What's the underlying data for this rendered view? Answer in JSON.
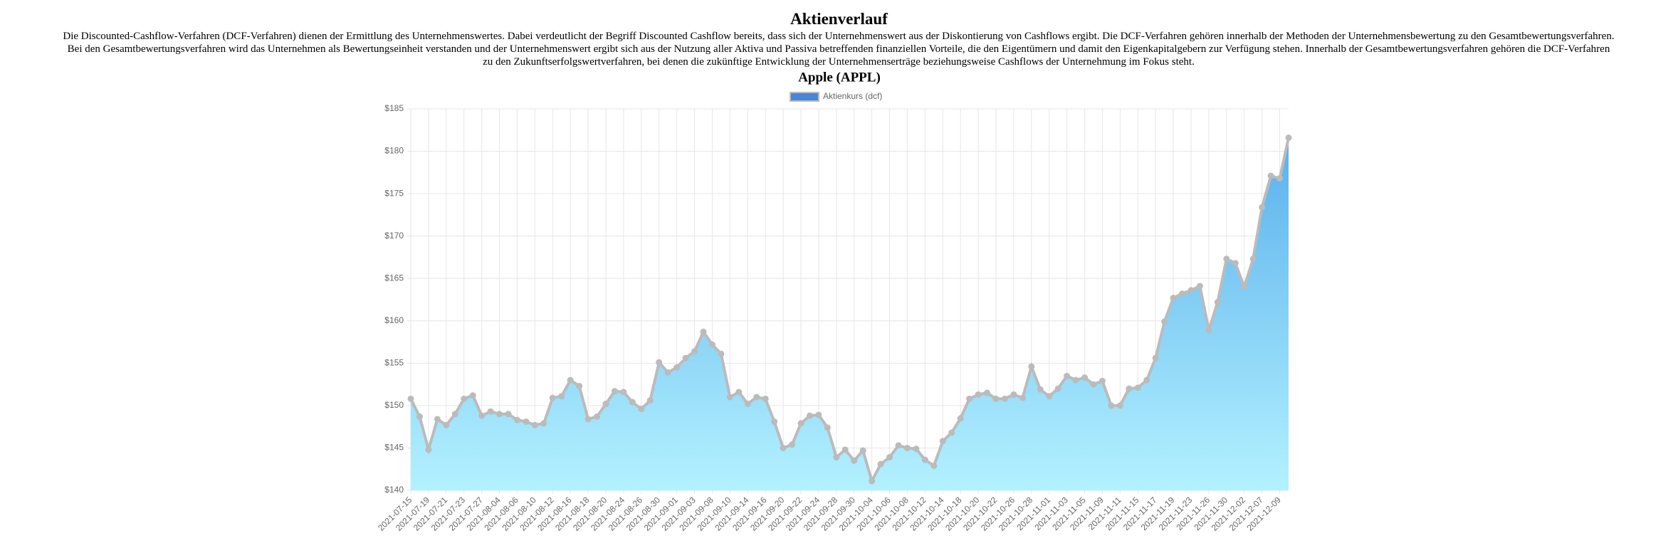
{
  "header": {
    "title": "Aktienverlauf",
    "text": "Die Discounted-Cashflow-Verfahren (DCF-Verfahren) dienen der Ermittlung des Unternehmenswertes. Dabei verdeutlicht der Begriff Discounted Cashflow bereits, dass sich der Unternehmenswert aus der Diskontierung von Cashflows ergibt. Die DCF-Verfahren gehören innerhalb der Methoden der Unternehmensbewertung zu den Gesamtbewertungsverfahren. Bei den Gesamtbewertungsverfahren wird das Unternehmen als Bewertungseinheit verstanden und der Unternehmenswert ergibt sich aus der Nutzung aller Aktiva und Passiva betreffenden finanziellen Vorteile, die den Eigentümern und damit den Eigenkapitalgebern zur Verfügung stehen. Innerhalb der Gesamtbewertungsverfahren gehören die DCF-Verfahren zu den Zukunftserfolgswertverfahren, bei denen die zukünftige Entwicklung der Unternehmenserträge beziehungsweise Cashflows der Unternehmung im Fokus steht."
  },
  "chart_data": {
    "type": "area",
    "title": "Apple (APPL)",
    "categories": [
      "2021-07-15",
      null,
      "2021-07-19",
      null,
      "2021-07-21",
      null,
      "2021-07-23",
      null,
      "2021-07-27",
      null,
      "2021-08-04",
      null,
      "2021-08-06",
      null,
      "2021-08-10",
      null,
      "2021-08-12",
      null,
      "2021-08-16",
      null,
      "2021-08-18",
      null,
      "2021-08-20",
      null,
      "2021-08-24",
      null,
      "2021-08-26",
      null,
      "2021-08-30",
      null,
      "2021-09-01",
      null,
      "2021-09-03",
      null,
      "2021-09-08",
      null,
      "2021-09-10",
      null,
      "2021-09-14",
      null,
      "2021-09-16",
      null,
      "2021-09-20",
      null,
      "2021-09-22",
      null,
      "2021-09-24",
      null,
      "2021-09-28",
      null,
      "2021-09-30",
      null,
      "2021-10-04",
      null,
      "2021-10-06",
      null,
      "2021-10-08",
      null,
      "2021-10-12",
      null,
      "2021-10-14",
      null,
      "2021-10-18",
      null,
      "2021-10-20",
      null,
      "2021-10-22",
      null,
      "2021-10-26",
      null,
      "2021-10-28",
      null,
      "2021-11-01",
      null,
      "2021-11-03",
      null,
      "2021-11-05",
      null,
      "2021-11-09",
      null,
      "2021-11-11",
      null,
      "2021-11-15",
      null,
      "2021-11-17",
      null,
      "2021-11-19",
      null,
      "2021-11-23",
      null,
      "2021-11-26",
      null,
      "2021-11-30",
      null,
      "2021-12-02",
      null,
      "2021-12-07",
      null,
      "2021-12-09",
      null
    ],
    "series": [
      {
        "name": "Aktienkurs (dcf)",
        "color": "#bbbbbb",
        "legend_color": "#4a86d8",
        "fill_gradient": [
          "#5ab0ec",
          "#b3f1ff"
        ],
        "values": [
          150.8,
          148.7,
          144.8,
          148.4,
          147.7,
          149.0,
          150.8,
          151.2,
          148.8,
          149.3,
          149.0,
          149.0,
          148.3,
          148.1,
          147.7,
          147.9,
          150.9,
          151.1,
          153.0,
          152.3,
          148.4,
          148.7,
          150.2,
          151.7,
          151.6,
          150.4,
          149.6,
          150.6,
          155.1,
          153.9,
          154.5,
          155.6,
          156.4,
          158.7,
          157.2,
          156.1,
          151.0,
          151.6,
          150.2,
          151.0,
          150.8,
          148.1,
          145.0,
          145.4,
          147.9,
          148.8,
          148.9,
          147.4,
          143.9,
          144.8,
          143.5,
          144.7,
          141.1,
          143.1,
          143.9,
          145.3,
          145.0,
          144.9,
          143.6,
          142.9,
          145.8,
          146.8,
          148.5,
          150.8,
          151.3,
          151.5,
          150.8,
          150.8,
          151.3,
          150.9,
          154.6,
          151.9,
          151.1,
          152.0,
          153.5,
          153.0,
          153.3,
          152.5,
          152.9,
          150.0,
          150.0,
          152.0,
          152.1,
          153.0,
          155.6,
          159.9,
          162.7,
          163.2,
          163.6,
          164.1,
          158.9,
          162.2,
          167.3,
          166.8,
          164.0,
          167.3,
          173.4,
          177.1,
          176.8,
          181.6
        ]
      }
    ],
    "ylim": [
      140,
      185
    ],
    "yticks": [
      {
        "value": 140,
        "label": "$140"
      },
      {
        "value": 145,
        "label": "$145"
      },
      {
        "value": 150,
        "label": "$150"
      },
      {
        "value": 155,
        "label": "$155"
      },
      {
        "value": 160,
        "label": "$160"
      },
      {
        "value": 165,
        "label": "$165"
      },
      {
        "value": 170,
        "label": "$170"
      },
      {
        "value": 175,
        "label": "$175"
      },
      {
        "value": 180,
        "label": "$180"
      },
      {
        "value": 185,
        "label": "$185"
      }
    ],
    "grid": true
  }
}
